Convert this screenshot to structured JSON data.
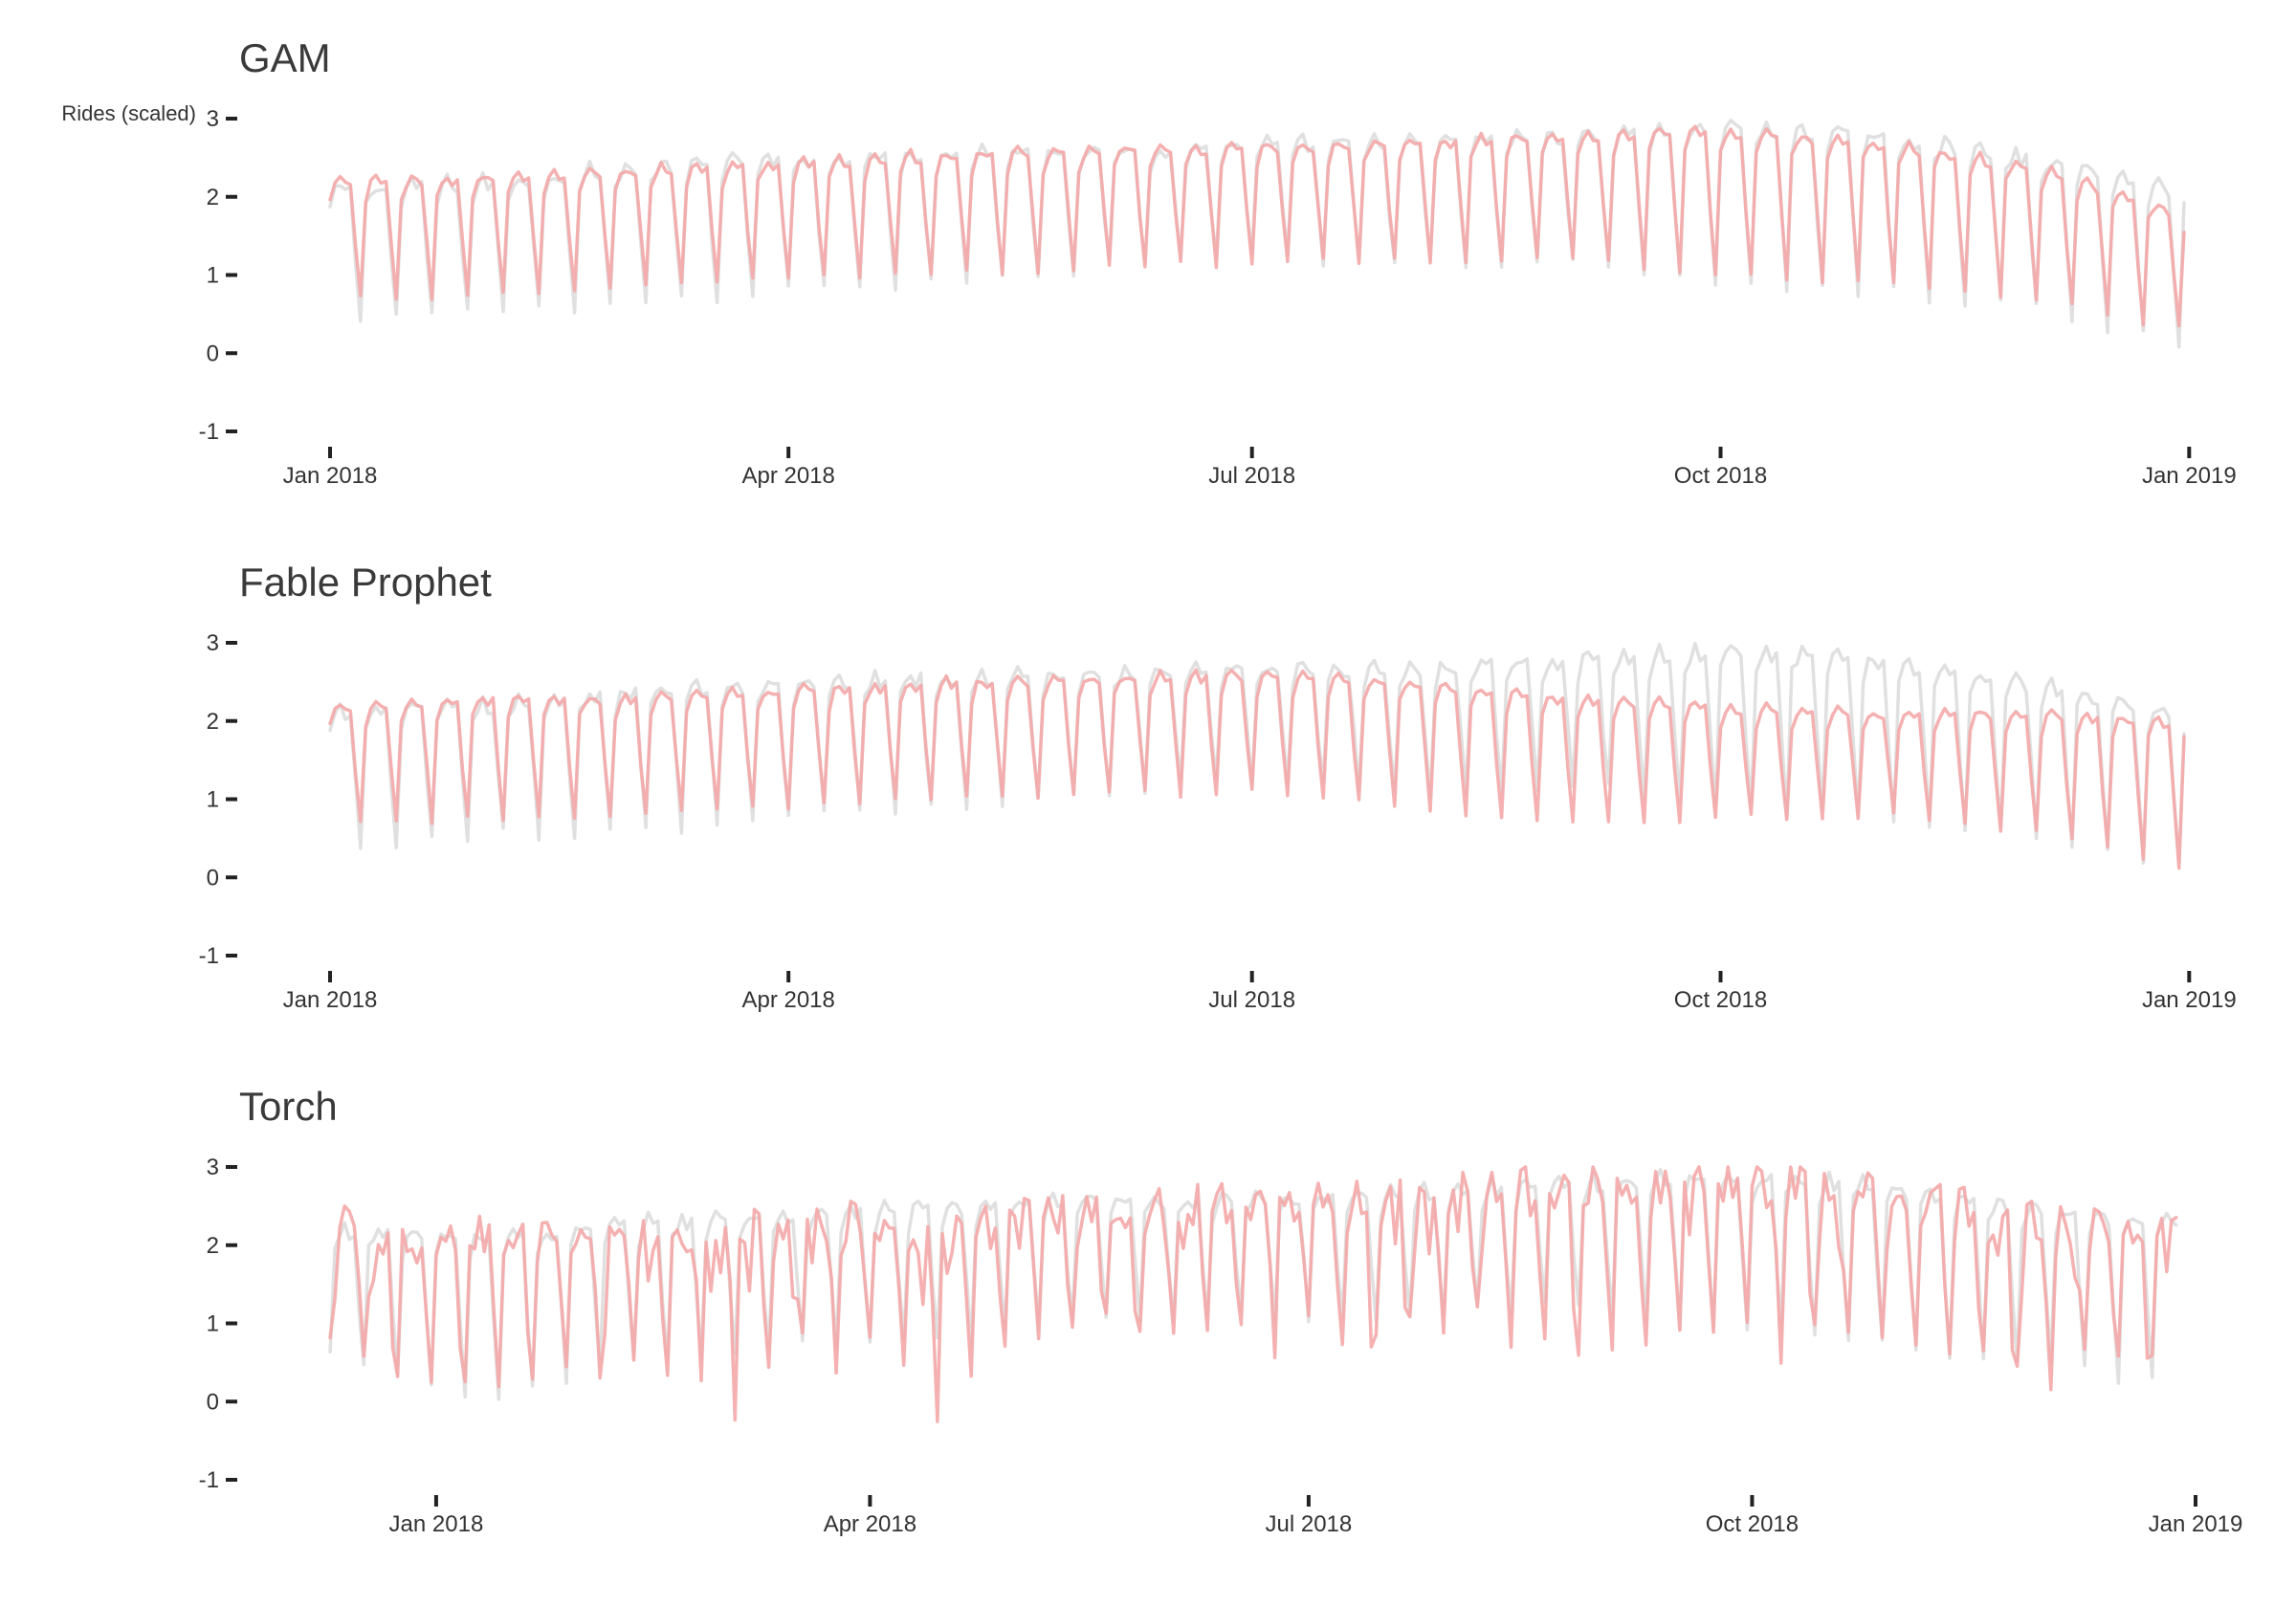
{
  "chart_data": [
    {
      "type": "line",
      "title": "GAM",
      "ylabel": "Rides (scaled)",
      "xlabel": "",
      "ylim": [
        -1,
        3
      ],
      "yticks": [
        -1,
        0,
        1,
        2,
        3
      ],
      "xlim": [
        "2018-01-01",
        "2018-12-31"
      ],
      "xticks": [
        {
          "date": "2018-01-01",
          "label": "Jan 2018"
        },
        {
          "date": "2018-04-01",
          "label": "Apr 2018"
        },
        {
          "date": "2018-07-01",
          "label": "Jul 2018"
        },
        {
          "date": "2018-10-01",
          "label": "Oct 2018"
        },
        {
          "date": "2019-01-01",
          "label": "Jan 2019"
        }
      ],
      "grid": false,
      "series": [
        {
          "role": "actual",
          "color": "#e0e0e0",
          "model": "gam",
          "start": "2018-01-01",
          "end": "2018-12-31",
          "base": [
            2.1,
            2.2,
            2.4,
            2.5,
            2.6,
            2.6,
            2.7,
            2.7,
            2.8,
            2.9,
            2.8,
            2.5,
            2.1
          ],
          "weekend": [
            0.4,
            0.55,
            0.6,
            0.8,
            0.9,
            1.1,
            1.2,
            1.1,
            1.2,
            0.9,
            0.8,
            0.6,
            0.1
          ]
        },
        {
          "role": "fitted",
          "color": "#f4a8a8",
          "model": "gam",
          "start": "2018-01-01",
          "end": "2018-12-31",
          "base": [
            2.2,
            2.25,
            2.35,
            2.45,
            2.55,
            2.6,
            2.65,
            2.7,
            2.8,
            2.85,
            2.7,
            2.4,
            1.8
          ],
          "weekend": [
            0.7,
            0.75,
            0.85,
            0.95,
            1.0,
            1.1,
            1.15,
            1.2,
            1.2,
            1.0,
            0.9,
            0.7,
            0.3
          ]
        }
      ]
    },
    {
      "type": "line",
      "title": "Fable Prophet",
      "ylabel": "",
      "xlabel": "",
      "ylim": [
        -1,
        3
      ],
      "yticks": [
        -1,
        0,
        1,
        2,
        3
      ],
      "xlim": [
        "2018-01-01",
        "2018-12-31"
      ],
      "xticks": [
        {
          "date": "2018-01-01",
          "label": "Jan 2018"
        },
        {
          "date": "2018-04-01",
          "label": "Apr 2018"
        },
        {
          "date": "2018-07-01",
          "label": "Jul 2018"
        },
        {
          "date": "2018-10-01",
          "label": "Oct 2018"
        },
        {
          "date": "2019-01-01",
          "label": "Jan 2019"
        }
      ],
      "grid": false,
      "series": [
        {
          "role": "actual",
          "color": "#e0e0e0",
          "model": "prophet",
          "start": "2018-01-01",
          "end": "2018-12-31",
          "base": [
            2.1,
            2.2,
            2.4,
            2.5,
            2.6,
            2.6,
            2.7,
            2.7,
            2.8,
            2.9,
            2.8,
            2.5,
            2.1
          ],
          "weekend": [
            0.4,
            0.55,
            0.6,
            0.8,
            0.9,
            1.1,
            1.2,
            1.1,
            1.2,
            0.9,
            0.8,
            0.6,
            0.1
          ]
        },
        {
          "role": "fitted",
          "color": "#f4a8a8",
          "model": "prophet",
          "start": "2018-01-01",
          "end": "2018-12-31",
          "base": [
            2.2,
            2.3,
            2.3,
            2.4,
            2.5,
            2.55,
            2.6,
            2.5,
            2.3,
            2.2,
            2.1,
            2.1,
            2.0
          ],
          "weekend": [
            0.7,
            0.75,
            0.8,
            0.9,
            1.0,
            1.05,
            1.1,
            0.9,
            0.7,
            0.75,
            0.8,
            0.6,
            0.1
          ]
        }
      ]
    },
    {
      "type": "line",
      "title": "Torch",
      "ylabel": "",
      "xlabel": "",
      "ylim": [
        -1,
        3
      ],
      "yticks": [
        -1,
        0,
        1,
        2,
        3
      ],
      "xlim": [
        "2017-12-08",
        "2019-01-01"
      ],
      "xticks": [
        {
          "date": "2018-01-01",
          "label": "Jan 2018"
        },
        {
          "date": "2018-04-01",
          "label": "Apr 2018"
        },
        {
          "date": "2018-07-01",
          "label": "Jul 2018"
        },
        {
          "date": "2018-10-01",
          "label": "Oct 2018"
        },
        {
          "date": "2019-01-01",
          "label": "Jan 2019"
        }
      ],
      "grid": false,
      "series": [
        {
          "role": "actual",
          "color": "#e0e0e0",
          "model": "torch-actual",
          "start": "2017-12-10",
          "end": "2018-12-28",
          "base": [
            2.2,
            2.1,
            2.3,
            2.4,
            2.5,
            2.6,
            2.6,
            2.7,
            2.8,
            2.9,
            2.8,
            2.5,
            2.3
          ],
          "weekend": [
            0.6,
            0.0,
            0.5,
            0.7,
            0.8,
            1.0,
            1.1,
            1.1,
            1.2,
            0.9,
            0.8,
            0.5,
            0.2
          ]
        },
        {
          "role": "fitted",
          "color": "#f4a8a8",
          "model": "torch",
          "start": "2017-12-10",
          "end": "2018-12-28",
          "base": [
            2.25,
            2.1,
            2.2,
            2.3,
            2.4,
            2.5,
            2.6,
            2.7,
            2.8,
            2.9,
            2.7,
            2.4,
            2.15
          ],
          "weekend": [
            0.7,
            0.2,
            0.5,
            0.6,
            0.7,
            0.9,
            0.9,
            0.9,
            1.0,
            0.8,
            0.7,
            0.4,
            0.4
          ]
        }
      ]
    }
  ]
}
